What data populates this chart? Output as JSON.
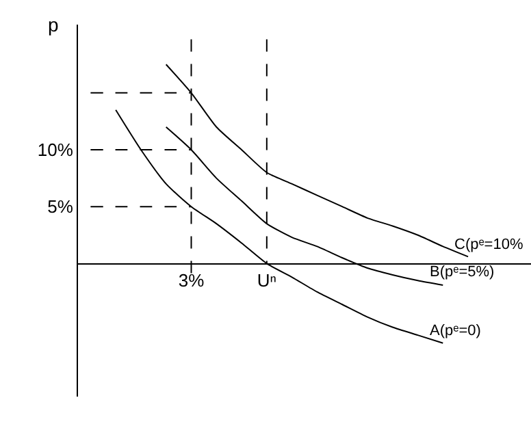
{
  "chart_data": {
    "type": "line",
    "ylabel": "p",
    "ylim": [
      -11.7,
      21
    ],
    "categories": [
      null,
      null,
      null,
      null,
      "3%",
      null,
      null,
      "Uⁿ",
      null,
      null,
      null,
      null,
      null,
      null,
      null,
      null,
      null,
      null
    ],
    "yticks": [
      {
        "value": 5,
        "label": "5%"
      },
      {
        "value": 10,
        "label": "10%"
      }
    ],
    "grid": false,
    "legend": false,
    "marker": "none",
    "series": [
      {
        "name": "A(pᵉ=0)",
        "color": "#000000",
        "line_style": "solid",
        "values": [
          null,
          13.5,
          10,
          7,
          5,
          3.5,
          1.8,
          0,
          -1.2,
          -2.5,
          -3.6,
          -4.7,
          -5.6,
          -6.3,
          -7,
          null,
          null,
          null
        ]
      },
      {
        "name": "B(pᵉ=5%)",
        "color": "#000000",
        "line_style": "solid",
        "values": [
          null,
          null,
          null,
          12,
          10,
          7.5,
          5.5,
          3.5,
          2.3,
          1.5,
          0.5,
          -0.4,
          -1,
          -1.5,
          -1.9,
          null,
          null,
          null
        ]
      },
      {
        "name": "C(pᵉ=10%",
        "color": "#000000",
        "line_style": "solid",
        "values": [
          null,
          null,
          null,
          17.5,
          15,
          12,
          10,
          8,
          7,
          6,
          5,
          4,
          3.3,
          2.5,
          1.5,
          0.6,
          null,
          null
        ]
      },
      {
        "color": "#000000",
        "line_style": "dashed",
        "values": [
          15,
          15,
          15,
          15,
          15,
          null,
          null,
          null,
          null,
          null,
          null,
          null,
          null,
          null,
          null,
          null,
          null,
          null
        ]
      },
      {
        "color": "#000000",
        "line_style": "dashed",
        "values": [
          10,
          10,
          10,
          10,
          10,
          null,
          null,
          null,
          null,
          null,
          null,
          null,
          null,
          null,
          null,
          null,
          null,
          null
        ]
      },
      {
        "color": "#000000",
        "line_style": "dashed",
        "values": [
          5,
          5,
          5,
          5,
          5,
          null,
          null,
          null,
          null,
          null,
          null,
          null,
          null,
          null,
          null,
          null,
          null,
          null
        ]
      },
      {
        "color": "#000000",
        "line_style": "dashed",
        "x": [
          "3%",
          "3%"
        ],
        "values": [
          19.7,
          -1.7
        ]
      },
      {
        "color": "#000000",
        "line_style": "dashed",
        "x": [
          "Uⁿ",
          "Uⁿ"
        ],
        "values": [
          19.7,
          0
        ]
      }
    ]
  }
}
